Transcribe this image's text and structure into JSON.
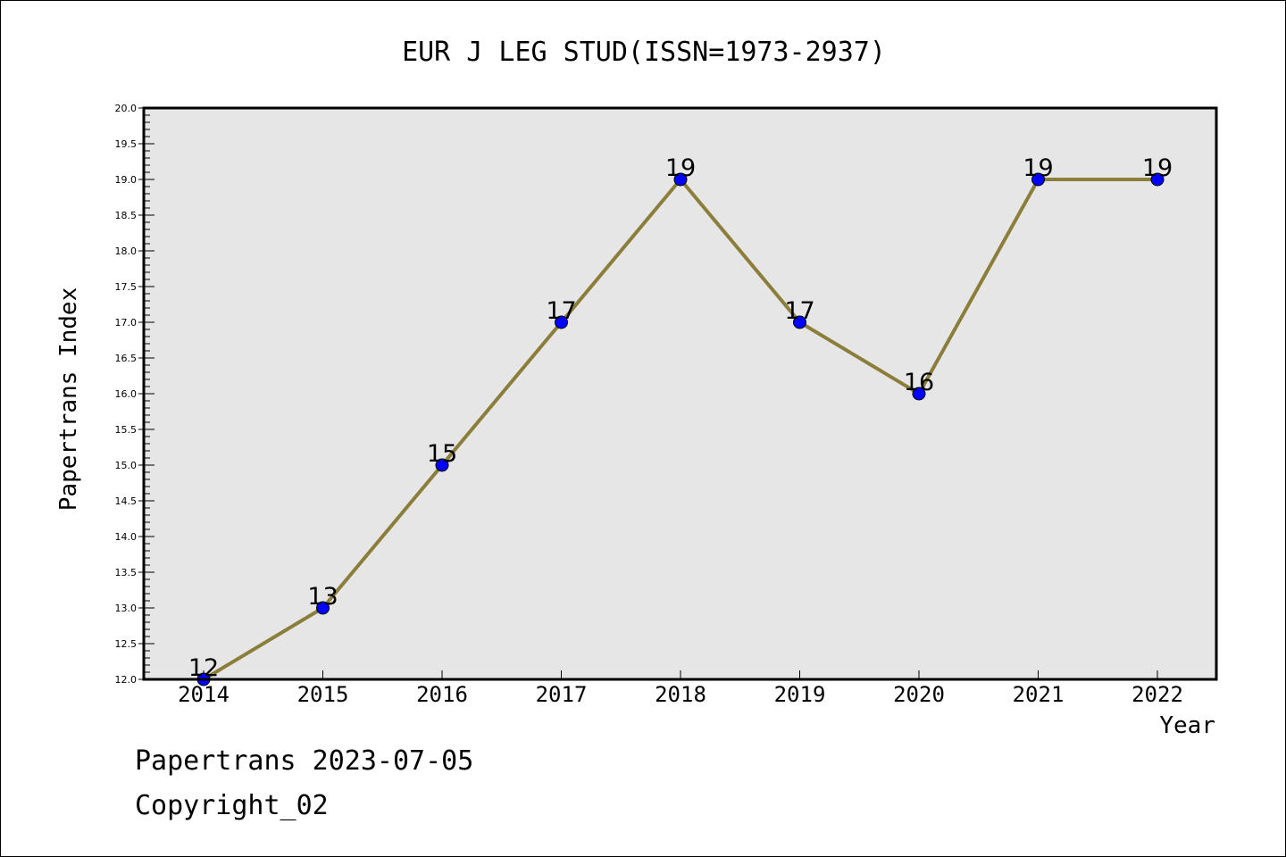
{
  "chart_data": {
    "type": "line",
    "title": "EUR J LEG STUD(ISSN=1973-2937)",
    "xlabel": "Year",
    "ylabel": "Papertrans Index",
    "x": [
      "2014",
      "2015",
      "2016",
      "2017",
      "2018",
      "2019",
      "2020",
      "2021",
      "2022"
    ],
    "series": [
      {
        "values": [
          12,
          13,
          15,
          17,
          19,
          17,
          16,
          19,
          19
        ],
        "labels": [
          "12",
          "13",
          "15",
          "17",
          "19",
          "17",
          "16",
          "19",
          "19"
        ],
        "line_color": "#8b7d3a",
        "marker_color": "#0000ff"
      }
    ],
    "ylim": [
      12.0,
      20.0
    ],
    "y_ticks": [
      "12.0",
      "12.5",
      "13.0",
      "13.5",
      "14.0",
      "14.5",
      "15.0",
      "15.5",
      "16.0",
      "16.5",
      "17.0",
      "17.5",
      "18.0",
      "18.5",
      "19.0",
      "19.5",
      "20.0"
    ],
    "grid": false,
    "legend": "none",
    "plot_background": "#e6e6e6"
  },
  "footer": {
    "date_line": "Papertrans 2023-07-05",
    "copyright_line": "Copyright_02"
  }
}
